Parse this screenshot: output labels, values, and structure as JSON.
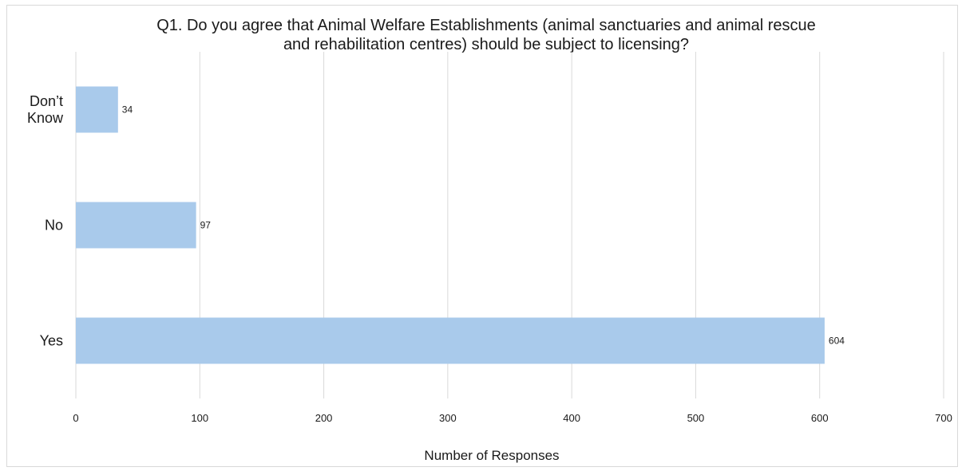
{
  "chart_data": {
    "type": "bar",
    "orientation": "horizontal",
    "title_lines": [
      "Q1. Do you agree that Animal Welfare Establishments (animal sanctuaries and animal rescue",
      "and rehabilitation centres) should be subject to licensing?"
    ],
    "categories": [
      "Don’t Know",
      "No",
      "Yes"
    ],
    "category_label_lines": [
      [
        "Don’t",
        "Know"
      ],
      [
        "No"
      ],
      [
        "Yes"
      ]
    ],
    "values": [
      34,
      97,
      604
    ],
    "xlabel": "Number of Responses",
    "ylabel": "",
    "xlim": [
      0,
      700
    ],
    "xticks": [
      0,
      100,
      200,
      300,
      400,
      500,
      600,
      700
    ],
    "grid": "vertical",
    "legend": "none",
    "bar_color": "#a9caeb",
    "grid_color": "#d9d9d9"
  }
}
